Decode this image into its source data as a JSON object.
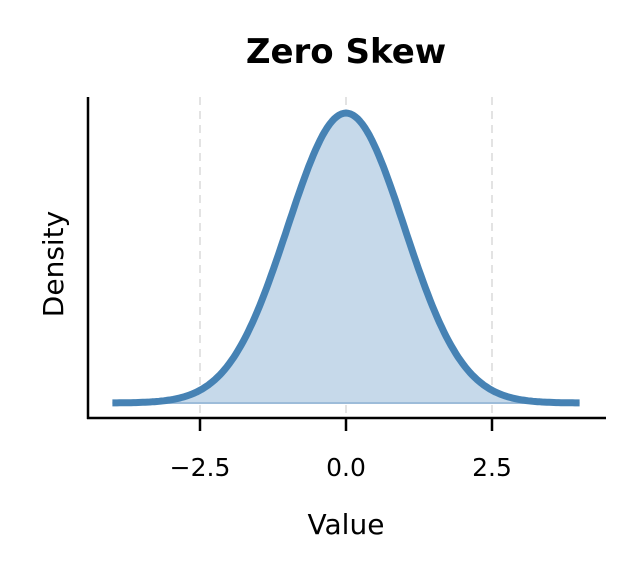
{
  "chart_data": {
    "type": "area",
    "title": "Zero Skew",
    "xlabel": "Value",
    "ylabel": "Density",
    "xlim": [
      -4.45,
      4.4
    ],
    "x_ticks": [
      -2.5,
      0.0,
      2.5
    ],
    "x_tick_labels": [
      "−2.5",
      "0.0",
      "2.5"
    ],
    "y_ticks": [],
    "grid": false,
    "reference_lines_x": [
      -2.5,
      0.0,
      2.5
    ],
    "series": [
      {
        "name": "density",
        "distribution": "normal",
        "mean": 0.0,
        "std": 1.0,
        "skew": 0.0,
        "x_range": [
          -4.0,
          4.0
        ],
        "peak_density": 0.399,
        "x": [
          -4.0,
          -3.5,
          -3.0,
          -2.5,
          -2.0,
          -1.5,
          -1.0,
          -0.5,
          0.0,
          0.5,
          1.0,
          1.5,
          2.0,
          2.5,
          3.0,
          3.5,
          4.0
        ],
        "values": [
          0.0001,
          0.0009,
          0.0044,
          0.0175,
          0.054,
          0.1295,
          0.242,
          0.3521,
          0.3989,
          0.3521,
          0.242,
          0.1295,
          0.054,
          0.0175,
          0.0044,
          0.0009,
          0.0001
        ]
      }
    ],
    "colors": {
      "line": "#4682b4",
      "fill": "#c6d9ea",
      "reference_line": "#e3e3e3"
    }
  }
}
